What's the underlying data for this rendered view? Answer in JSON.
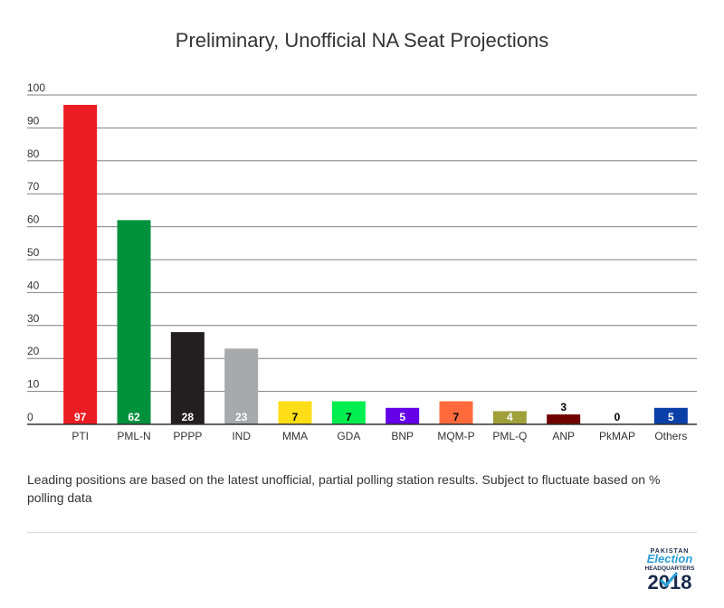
{
  "chart_data": {
    "type": "bar",
    "title": "Preliminary, Unofficial NA Seat Projections",
    "categories": [
      "PTI",
      "PML-N",
      "PPPP",
      "IND",
      "MMA",
      "GDA",
      "BNP",
      "MQM-P",
      "PML-Q",
      "ANP",
      "PkMAP",
      "Others"
    ],
    "values": [
      97,
      62,
      28,
      23,
      7,
      7,
      5,
      7,
      4,
      3,
      0,
      5
    ],
    "colors": [
      "#ec1c24",
      "#00913c",
      "#231f20",
      "#a7a9ac",
      "#ffde17",
      "#00ee50",
      "#6400e8",
      "#ff6a3d",
      "#9fa03a",
      "#710000",
      "#ffffff",
      "#0a3fa8"
    ],
    "ylim": [
      0,
      100
    ],
    "yticks": [
      0,
      10,
      20,
      30,
      40,
      50,
      60,
      70,
      80,
      90,
      100
    ],
    "grid": true,
    "xlabel": "",
    "ylabel": ""
  },
  "footnote": "Leading positions are based on the latest unofficial, partial polling station results. Subject to fluctuate based on % polling data",
  "logo": {
    "top": "PAKISTAN",
    "mid": "Election",
    "sub": "HEADQUARTERS",
    "year": "2018"
  }
}
